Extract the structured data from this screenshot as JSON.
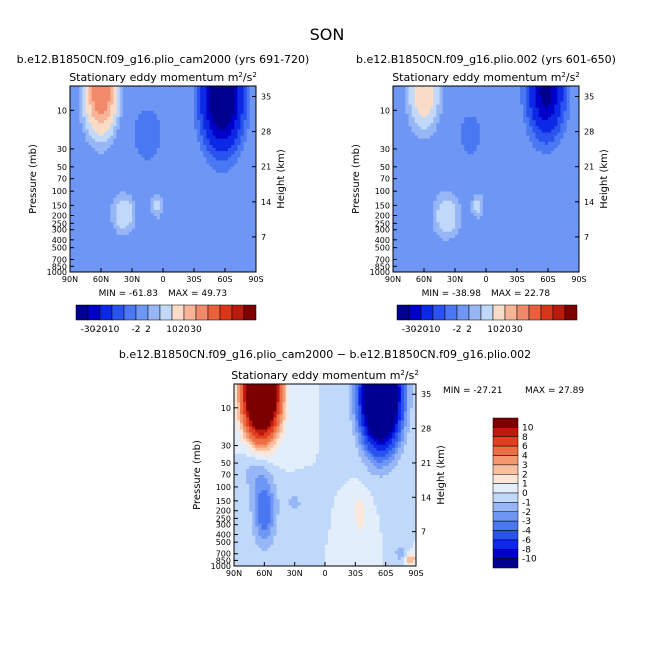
{
  "figure_title": "SON",
  "palettes": {
    "top": [
      "#000090",
      "#0000c8",
      "#0a28e6",
      "#2a52ee",
      "#4a78f2",
      "#6e96f4",
      "#96b6f6",
      "#c0d8fa",
      "#f8dcc8",
      "#f8b496",
      "#f08a6a",
      "#e8603c",
      "#d83618",
      "#b81a0c",
      "#7c0000"
    ],
    "diff": [
      "#000090",
      "#0000c8",
      "#0a28e6",
      "#2a52ee",
      "#4a78f2",
      "#6e96f4",
      "#96b6f6",
      "#c0d8fa",
      "#e2eefc",
      "#fce6d8",
      "#f8c0a0",
      "#f49870",
      "#ec6e44",
      "#e04020",
      "#c0180c",
      "#7c0000"
    ]
  },
  "chart_data": [
    {
      "type": "heatmap",
      "run": "b.e12.B1850CN.f09_g16.plio_cam2000 (yrs 691-720)",
      "title": "Stationary eddy momentum",
      "units": "m²/s²",
      "units_base": "m",
      "units_sup1": "2",
      "units_mid": "/s",
      "units_sup2": "2",
      "xlabel": "",
      "ylabel": "Pressure (mb)",
      "ylabel_right": "Height (km)",
      "x_ticks": [
        "90N",
        "60N",
        "30N",
        "0",
        "30S",
        "60S",
        "90S"
      ],
      "x_tick_values": [
        90,
        60,
        30,
        0,
        -30,
        -60,
        -90
      ],
      "y_ticks": [
        "10",
        "30",
        "50",
        "70",
        "100",
        "150",
        "200",
        "250",
        "300",
        "400",
        "500",
        "700",
        "850",
        "1000"
      ],
      "y_tick_values": [
        10,
        30,
        50,
        70,
        100,
        150,
        200,
        250,
        300,
        400,
        500,
        700,
        850,
        1000
      ],
      "height_ticks": [
        "35",
        "28",
        "21",
        "14",
        "7"
      ],
      "height_tick_values": [
        35,
        28,
        21,
        14,
        7
      ],
      "ylim": [
        1000,
        5
      ],
      "xlim": [
        90,
        -90
      ],
      "min_label": "MIN = -61.83",
      "max_label": "MAX = 49.73",
      "min": -61.83,
      "max": 49.73,
      "levels": [
        -30,
        -20,
        -10,
        -5,
        -2,
        2,
        5,
        10,
        20,
        30
      ],
      "colorbar_ticks": [
        "-30",
        "-20",
        "-10",
        "-2",
        "2",
        "10",
        "20",
        "30"
      ],
      "features": [
        {
          "lat": 60,
          "p": 6,
          "value": 45,
          "wlat": 9,
          "wlogp": 0.3
        },
        {
          "lat": -57,
          "p": 7,
          "value": -55,
          "wlat": 11,
          "wlogp": 0.36
        },
        {
          "lat": 38,
          "p": 190,
          "value": 10,
          "wlat": 7,
          "wlogp": 0.15
        },
        {
          "lat": 6,
          "p": 150,
          "value": 7,
          "wlat": 4,
          "wlogp": 0.1
        },
        {
          "lat": 15,
          "p": 20,
          "value": -3,
          "wlat": 14,
          "wlogp": 0.35
        },
        {
          "lat": -30,
          "p": 200,
          "value": 2,
          "wlat": 10,
          "wlogp": 0.3
        }
      ]
    },
    {
      "type": "heatmap",
      "run": "b.e12.B1850CN.f09_g16.plio.002 (yrs 601-650)",
      "title": "Stationary eddy momentum",
      "units": "m²/s²",
      "units_base": "m",
      "units_sup1": "2",
      "units_mid": "/s",
      "units_sup2": "2",
      "xlabel": "",
      "ylabel": "Pressure (mb)",
      "ylabel_right": "Height (km)",
      "x_ticks": [
        "90N",
        "60N",
        "30N",
        "0",
        "30S",
        "60S",
        "90S"
      ],
      "x_tick_values": [
        90,
        60,
        30,
        0,
        -30,
        -60,
        -90
      ],
      "y_ticks": [
        "10",
        "30",
        "50",
        "70",
        "100",
        "150",
        "200",
        "250",
        "300",
        "400",
        "500",
        "700",
        "850",
        "1000"
      ],
      "y_tick_values": [
        10,
        30,
        50,
        70,
        100,
        150,
        200,
        250,
        300,
        400,
        500,
        700,
        850,
        1000
      ],
      "height_ticks": [
        "35",
        "28",
        "21",
        "14",
        "7"
      ],
      "height_tick_values": [
        35,
        28,
        21,
        14,
        7
      ],
      "ylim": [
        1000,
        5
      ],
      "xlim": [
        90,
        -90
      ],
      "min_label": "MIN = -38.98",
      "max_label": "MAX = 22.78",
      "min": -38.98,
      "max": 22.78,
      "levels": [
        -30,
        -20,
        -10,
        -5,
        -2,
        2,
        5,
        10,
        20,
        30
      ],
      "colorbar_ticks": [
        "-30",
        "-20",
        "-10",
        "-2",
        "2",
        "10",
        "20",
        "30"
      ],
      "features": [
        {
          "lat": 60,
          "p": 6,
          "value": 18,
          "wlat": 9,
          "wlogp": 0.28
        },
        {
          "lat": -58,
          "p": 6,
          "value": -35,
          "wlat": 10,
          "wlogp": 0.32
        },
        {
          "lat": 38,
          "p": 200,
          "value": 10,
          "wlat": 8,
          "wlogp": 0.17
        },
        {
          "lat": 8,
          "p": 150,
          "value": 7,
          "wlat": 4,
          "wlogp": 0.1
        },
        {
          "lat": 15,
          "p": 20,
          "value": -2.5,
          "wlat": 14,
          "wlogp": 0.35
        }
      ]
    },
    {
      "type": "heatmap",
      "run": "b.e12.B1850CN.f09_g16.plio_cam2000 − b.e12.B1850CN.f09_g16.plio.002",
      "title": "Stationary eddy momentum",
      "units": "m²/s²",
      "units_base": "m",
      "units_sup1": "2",
      "units_mid": "/s",
      "units_sup2": "2",
      "xlabel": "",
      "ylabel": "Pressure (mb)",
      "ylabel_right": "Height (km)",
      "x_ticks": [
        "90N",
        "60N",
        "30N",
        "0",
        "30S",
        "60S",
        "90S"
      ],
      "x_tick_values": [
        90,
        60,
        30,
        0,
        -30,
        -60,
        -90
      ],
      "y_ticks": [
        "10",
        "30",
        "50",
        "70",
        "100",
        "150",
        "200",
        "250",
        "300",
        "400",
        "500",
        "700",
        "850",
        "1000"
      ],
      "y_tick_values": [
        10,
        30,
        50,
        70,
        100,
        150,
        200,
        250,
        300,
        400,
        500,
        700,
        850,
        1000
      ],
      "height_ticks": [
        "35",
        "28",
        "21",
        "14",
        "7"
      ],
      "height_tick_values": [
        35,
        28,
        21,
        14,
        7
      ],
      "ylim": [
        1000,
        5
      ],
      "xlim": [
        90,
        -90
      ],
      "min_label": "MIN = -27.21",
      "max_label": "MAX = 27.89",
      "min": -27.21,
      "max": 27.89,
      "levels": [
        -10,
        -8,
        -6,
        -4,
        -3,
        -2,
        -1,
        0,
        1,
        2,
        3,
        4,
        6,
        8,
        10
      ],
      "colorbar_ticks": [
        "10",
        "8",
        "6",
        "4",
        "3",
        "2",
        "1",
        "0",
        "-1",
        "-2",
        "-3",
        "-4",
        "-6",
        "-8",
        "-10"
      ],
      "features": [
        {
          "lat": 63,
          "p": 6,
          "value": 27,
          "wlat": 11,
          "wlogp": 0.36
        },
        {
          "lat": -55,
          "p": 7,
          "value": -27,
          "wlat": 12,
          "wlogp": 0.4
        },
        {
          "lat": 60,
          "p": 200,
          "value": -4,
          "wlat": 8,
          "wlogp": 0.3
        },
        {
          "lat": 70,
          "p": 60,
          "value": -1.5,
          "wlat": 10,
          "wlogp": 0.2
        },
        {
          "lat": 30,
          "p": 160,
          "value": -1.2,
          "wlat": 8,
          "wlogp": 0.12
        },
        {
          "lat": -35,
          "p": 220,
          "value": 1.5,
          "wlat": 6,
          "wlogp": 0.2
        },
        {
          "lat": -85,
          "p": 820,
          "value": 3,
          "wlat": 4,
          "wlogp": 0.05
        },
        {
          "lat": -75,
          "p": 700,
          "value": -2,
          "wlat": 4,
          "wlogp": 0.06
        }
      ]
    }
  ]
}
